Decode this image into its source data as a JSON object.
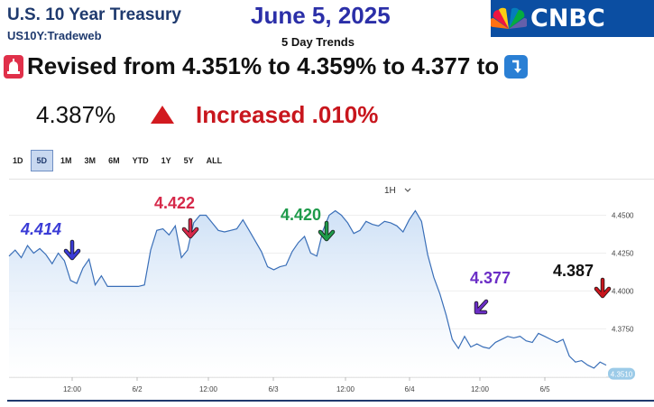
{
  "header": {
    "title": "U.S. 10 Year Treasury",
    "ticker": "US10Y:Tradeweb",
    "date": "June 5, 2025",
    "subtitle": "5 Day Trends",
    "brand": "CNBC",
    "brand_color": "#0b4ea2"
  },
  "summary": {
    "revised_text": "Revised from 4.351% to 4.359% to 4.377 to",
    "current_value": "4.387%",
    "change_text": "Increased .010%",
    "up_color": "#c8161d",
    "siren_icon": "siren-icon",
    "down_arrow_icon": "down-right-arrow-icon"
  },
  "range_tabs": [
    "1D",
    "5D",
    "1M",
    "3M",
    "6M",
    "YTD",
    "1Y",
    "5Y",
    "ALL"
  ],
  "active_range": "5D",
  "interval": "1H",
  "annotations": [
    {
      "text": "4.414",
      "color": "#3a3bd6",
      "italic": true
    },
    {
      "text": "4.422",
      "color": "#d6294a",
      "italic": false
    },
    {
      "text": "4.420",
      "color": "#1e9a4a",
      "italic": false
    },
    {
      "text": "4.377",
      "color": "#6b2ec6",
      "italic": false
    },
    {
      "text": "4.387",
      "color": "#111111",
      "italic": false
    }
  ],
  "chart_data": {
    "type": "area",
    "x_labels": [
      "12:00",
      "6/2",
      "12:00",
      "6/3",
      "12:00",
      "6/4",
      "12:00",
      "6/5"
    ],
    "y_ticks": [
      "4.4500",
      "4.4250",
      "4.4000",
      "4.3750"
    ],
    "ylim": [
      4.343,
      4.47
    ],
    "last_value_label": "4.3510",
    "line_color": "#3a6fb8",
    "fill_color": "#cfe1f6",
    "values": [
      4.423,
      4.427,
      4.422,
      4.43,
      4.425,
      4.428,
      4.424,
      4.418,
      4.425,
      4.42,
      4.407,
      4.405,
      4.415,
      4.421,
      4.404,
      4.41,
      4.403,
      4.403,
      4.403,
      4.403,
      4.403,
      4.403,
      4.404,
      4.427,
      4.44,
      4.441,
      4.437,
      4.443,
      4.422,
      4.427,
      4.445,
      4.45,
      4.45,
      4.445,
      4.44,
      4.439,
      4.44,
      4.441,
      4.447,
      4.44,
      4.433,
      4.426,
      4.416,
      4.414,
      4.416,
      4.417,
      4.426,
      4.432,
      4.436,
      4.425,
      4.423,
      4.44,
      4.45,
      4.453,
      4.45,
      4.445,
      4.438,
      4.44,
      4.446,
      4.444,
      4.443,
      4.446,
      4.445,
      4.443,
      4.439,
      4.447,
      4.453,
      4.446,
      4.424,
      4.409,
      4.398,
      4.384,
      4.368,
      4.362,
      4.37,
      4.363,
      4.365,
      4.363,
      4.362,
      4.366,
      4.368,
      4.37,
      4.369,
      4.37,
      4.367,
      4.366,
      4.372,
      4.37,
      4.368,
      4.366,
      4.368,
      4.357,
      4.353,
      4.354,
      4.351,
      4.349,
      4.353,
      4.351
    ]
  }
}
